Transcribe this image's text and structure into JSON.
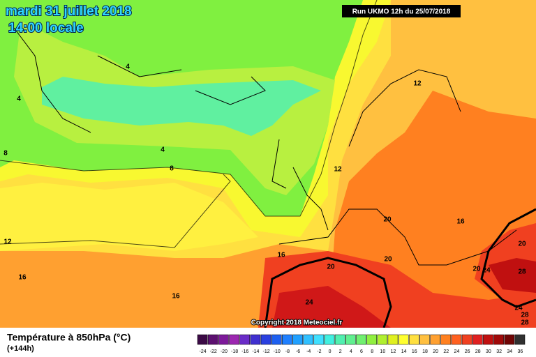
{
  "header": {
    "date": "mardi 31 juillet 2018",
    "time": "14:00 locale",
    "run": "Run UKMO 12h du 25/07/2018",
    "copyright": "Copyright 2018 Meteociel.fr"
  },
  "contour_labels": [
    4,
    4,
    4,
    8,
    8,
    12,
    12,
    12,
    16,
    16,
    16,
    16,
    20,
    20,
    20,
    20,
    20,
    24,
    24,
    24,
    28,
    28,
    28
  ],
  "legend": {
    "title": "Température à 850hPa (°C)",
    "subtitle": "(+144h)",
    "ticks": [
      -24,
      -22,
      -20,
      -18,
      -16,
      -14,
      -12,
      -10,
      -8,
      -6,
      -4,
      -2,
      0,
      2,
      4,
      6,
      8,
      10,
      12,
      14,
      16,
      18,
      20,
      22,
      24,
      26,
      28,
      30,
      32,
      34,
      36
    ],
    "colors": [
      "#3b0a45",
      "#5c1070",
      "#7d1a9a",
      "#9c27b0",
      "#6a2cc8",
      "#4030d0",
      "#2a40e0",
      "#1e60f0",
      "#2080ff",
      "#20a0ff",
      "#30c0ff",
      "#40e0ff",
      "#40f0e0",
      "#50f0b0",
      "#60f090",
      "#70f070",
      "#90f040",
      "#b0f030",
      "#e0f020",
      "#ffff30",
      "#ffe040",
      "#ffc040",
      "#ffa030",
      "#ff8020",
      "#ff6020",
      "#f04020",
      "#e02020",
      "#c01010",
      "#a00a0a",
      "#700505",
      "#303030"
    ]
  }
}
